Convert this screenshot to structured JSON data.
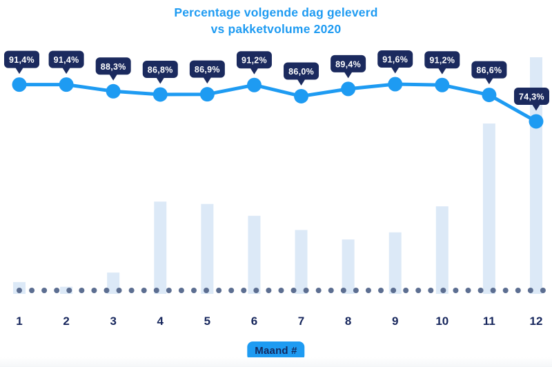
{
  "title": {
    "line1": "Percentage volgende dag geleverd",
    "line2": "vs pakketvolume 2020"
  },
  "xaxis_badge": "Maand #",
  "colors": {
    "accent_blue": "#1e9bf2",
    "tooltip_navy": "#1b2a5e",
    "tooltip_text": "#ffffff",
    "axis_label_navy": "#16265c",
    "badge_text_navy": "#13295e",
    "bar_fill": "#dce9f7",
    "baseline_dot": "#5c6e91",
    "background": "#ffffff"
  },
  "chart_data": {
    "type": "combo",
    "categories": [
      "1",
      "2",
      "3",
      "4",
      "5",
      "6",
      "7",
      "8",
      "9",
      "10",
      "11",
      "12"
    ],
    "series": [
      {
        "name": "Percentage volgende dag geleverd",
        "type": "line",
        "unit": "%",
        "values": [
          91.4,
          91.4,
          88.3,
          86.8,
          86.9,
          91.2,
          86.0,
          89.4,
          91.6,
          91.2,
          86.6,
          74.3
        ],
        "labels": [
          "91,4%",
          "91,4%",
          "88,3%",
          "86,8%",
          "86,9%",
          "91,2%",
          "86,0%",
          "89,4%",
          "91,6%",
          "91,2%",
          "86,6%",
          "74,3%"
        ]
      },
      {
        "name": "Pakketvolume 2020",
        "type": "bar",
        "unit": "relative, max = 100 (no value axis shown)",
        "values": [
          5,
          3,
          9,
          39,
          38,
          33,
          27,
          23,
          26,
          37,
          72,
          100
        ]
      }
    ],
    "title": "Percentage volgende dag geleverd vs pakketvolume 2020",
    "xlabel": "Maand #",
    "ylabel": "",
    "ylim_percent": [
      70,
      95
    ],
    "legend": "none",
    "grid": "dotted-baseline"
  }
}
